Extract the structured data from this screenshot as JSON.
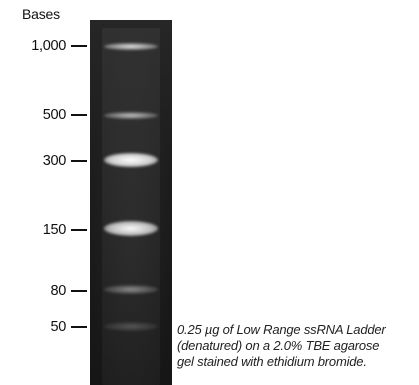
{
  "axis_title": "Bases",
  "markers": [
    {
      "label": "1,000",
      "bases": 1000
    },
    {
      "label": "500",
      "bases": 500
    },
    {
      "label": "300",
      "bases": 300
    },
    {
      "label": "150",
      "bases": 150
    },
    {
      "label": "80",
      "bases": 80
    },
    {
      "label": "50",
      "bases": 50
    }
  ],
  "caption_lines": [
    "0.25 µg of Low Range ssRNA Ladder",
    "(denatured) on a 2.0% TBE agarose",
    "gel stained with ethidium bromide."
  ],
  "colors": {
    "gel_background": "#1c1c1c",
    "band": "#f2f2f2",
    "text": "#111111"
  }
}
